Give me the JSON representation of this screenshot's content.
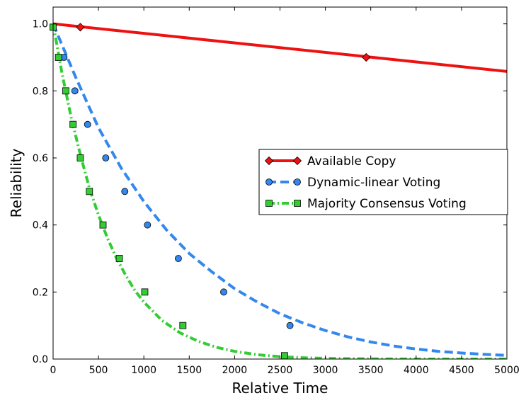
{
  "chart_data": {
    "type": "line",
    "title": "",
    "xlabel": "Relative Time",
    "ylabel": "Reliability",
    "xlim": [
      0,
      5000
    ],
    "ylim": [
      0.0,
      1.05
    ],
    "xticks": [
      0,
      500,
      1000,
      1500,
      2000,
      2500,
      3000,
      3500,
      4000,
      4500,
      5000
    ],
    "yticks": [
      0.0,
      0.2,
      0.4,
      0.6,
      0.8,
      1.0
    ],
    "ytick_labels": [
      "0.0",
      "0.2",
      "0.4",
      "0.6",
      "0.8",
      "1.0"
    ],
    "grid": false,
    "legend_position": "center-right",
    "series": [
      {
        "name": "Available Copy",
        "color": "#ee1111",
        "line_style": "solid",
        "marker": "diamond",
        "curve": [
          [
            0,
            1.0
          ],
          [
            5000,
            0.858
          ]
        ],
        "markers": [
          [
            300,
            0.99
          ],
          [
            3450,
            0.9
          ]
        ]
      },
      {
        "name": "Dynamic-linear Voting",
        "color": "#3388ee",
        "line_style": "dashed",
        "marker": "circle",
        "curve": [
          [
            0,
            1.0
          ],
          [
            250,
            0.84
          ],
          [
            500,
            0.69
          ],
          [
            750,
            0.57
          ],
          [
            1000,
            0.47
          ],
          [
            1250,
            0.385
          ],
          [
            1500,
            0.315
          ],
          [
            1750,
            0.26
          ],
          [
            2000,
            0.21
          ],
          [
            2250,
            0.17
          ],
          [
            2500,
            0.135
          ],
          [
            2750,
            0.108
          ],
          [
            3000,
            0.085
          ],
          [
            3250,
            0.066
          ],
          [
            3500,
            0.051
          ],
          [
            3750,
            0.039
          ],
          [
            4000,
            0.03
          ],
          [
            4250,
            0.023
          ],
          [
            4500,
            0.018
          ],
          [
            4750,
            0.014
          ],
          [
            5000,
            0.011
          ]
        ],
        "markers": [
          [
            120,
            0.9
          ],
          [
            240,
            0.8
          ],
          [
            380,
            0.7
          ],
          [
            580,
            0.6
          ],
          [
            790,
            0.5
          ],
          [
            1040,
            0.4
          ],
          [
            1380,
            0.3
          ],
          [
            1880,
            0.2
          ],
          [
            2610,
            0.1
          ]
        ]
      },
      {
        "name": "Majority Consensus Voting",
        "color": "#33cc33",
        "line_style": "dashdot",
        "marker": "square",
        "curve": [
          [
            0,
            1.0
          ],
          [
            100,
            0.85
          ],
          [
            200,
            0.72
          ],
          [
            300,
            0.61
          ],
          [
            400,
            0.51
          ],
          [
            500,
            0.43
          ],
          [
            600,
            0.36
          ],
          [
            700,
            0.3
          ],
          [
            800,
            0.25
          ],
          [
            900,
            0.205
          ],
          [
            1000,
            0.17
          ],
          [
            1200,
            0.115
          ],
          [
            1400,
            0.078
          ],
          [
            1600,
            0.053
          ],
          [
            1800,
            0.035
          ],
          [
            2000,
            0.023
          ],
          [
            2250,
            0.013
          ],
          [
            2500,
            0.007
          ],
          [
            2750,
            0.004
          ],
          [
            3000,
            0.002
          ],
          [
            3500,
            0.0005
          ],
          [
            4000,
            0.0001
          ],
          [
            5000,
            0.0
          ]
        ],
        "markers": [
          [
            0,
            0.99
          ],
          [
            60,
            0.9
          ],
          [
            140,
            0.8
          ],
          [
            220,
            0.7
          ],
          [
            300,
            0.6
          ],
          [
            400,
            0.5
          ],
          [
            550,
            0.4
          ],
          [
            730,
            0.3
          ],
          [
            1010,
            0.2
          ],
          [
            1430,
            0.1
          ],
          [
            2550,
            0.01
          ]
        ]
      }
    ]
  }
}
